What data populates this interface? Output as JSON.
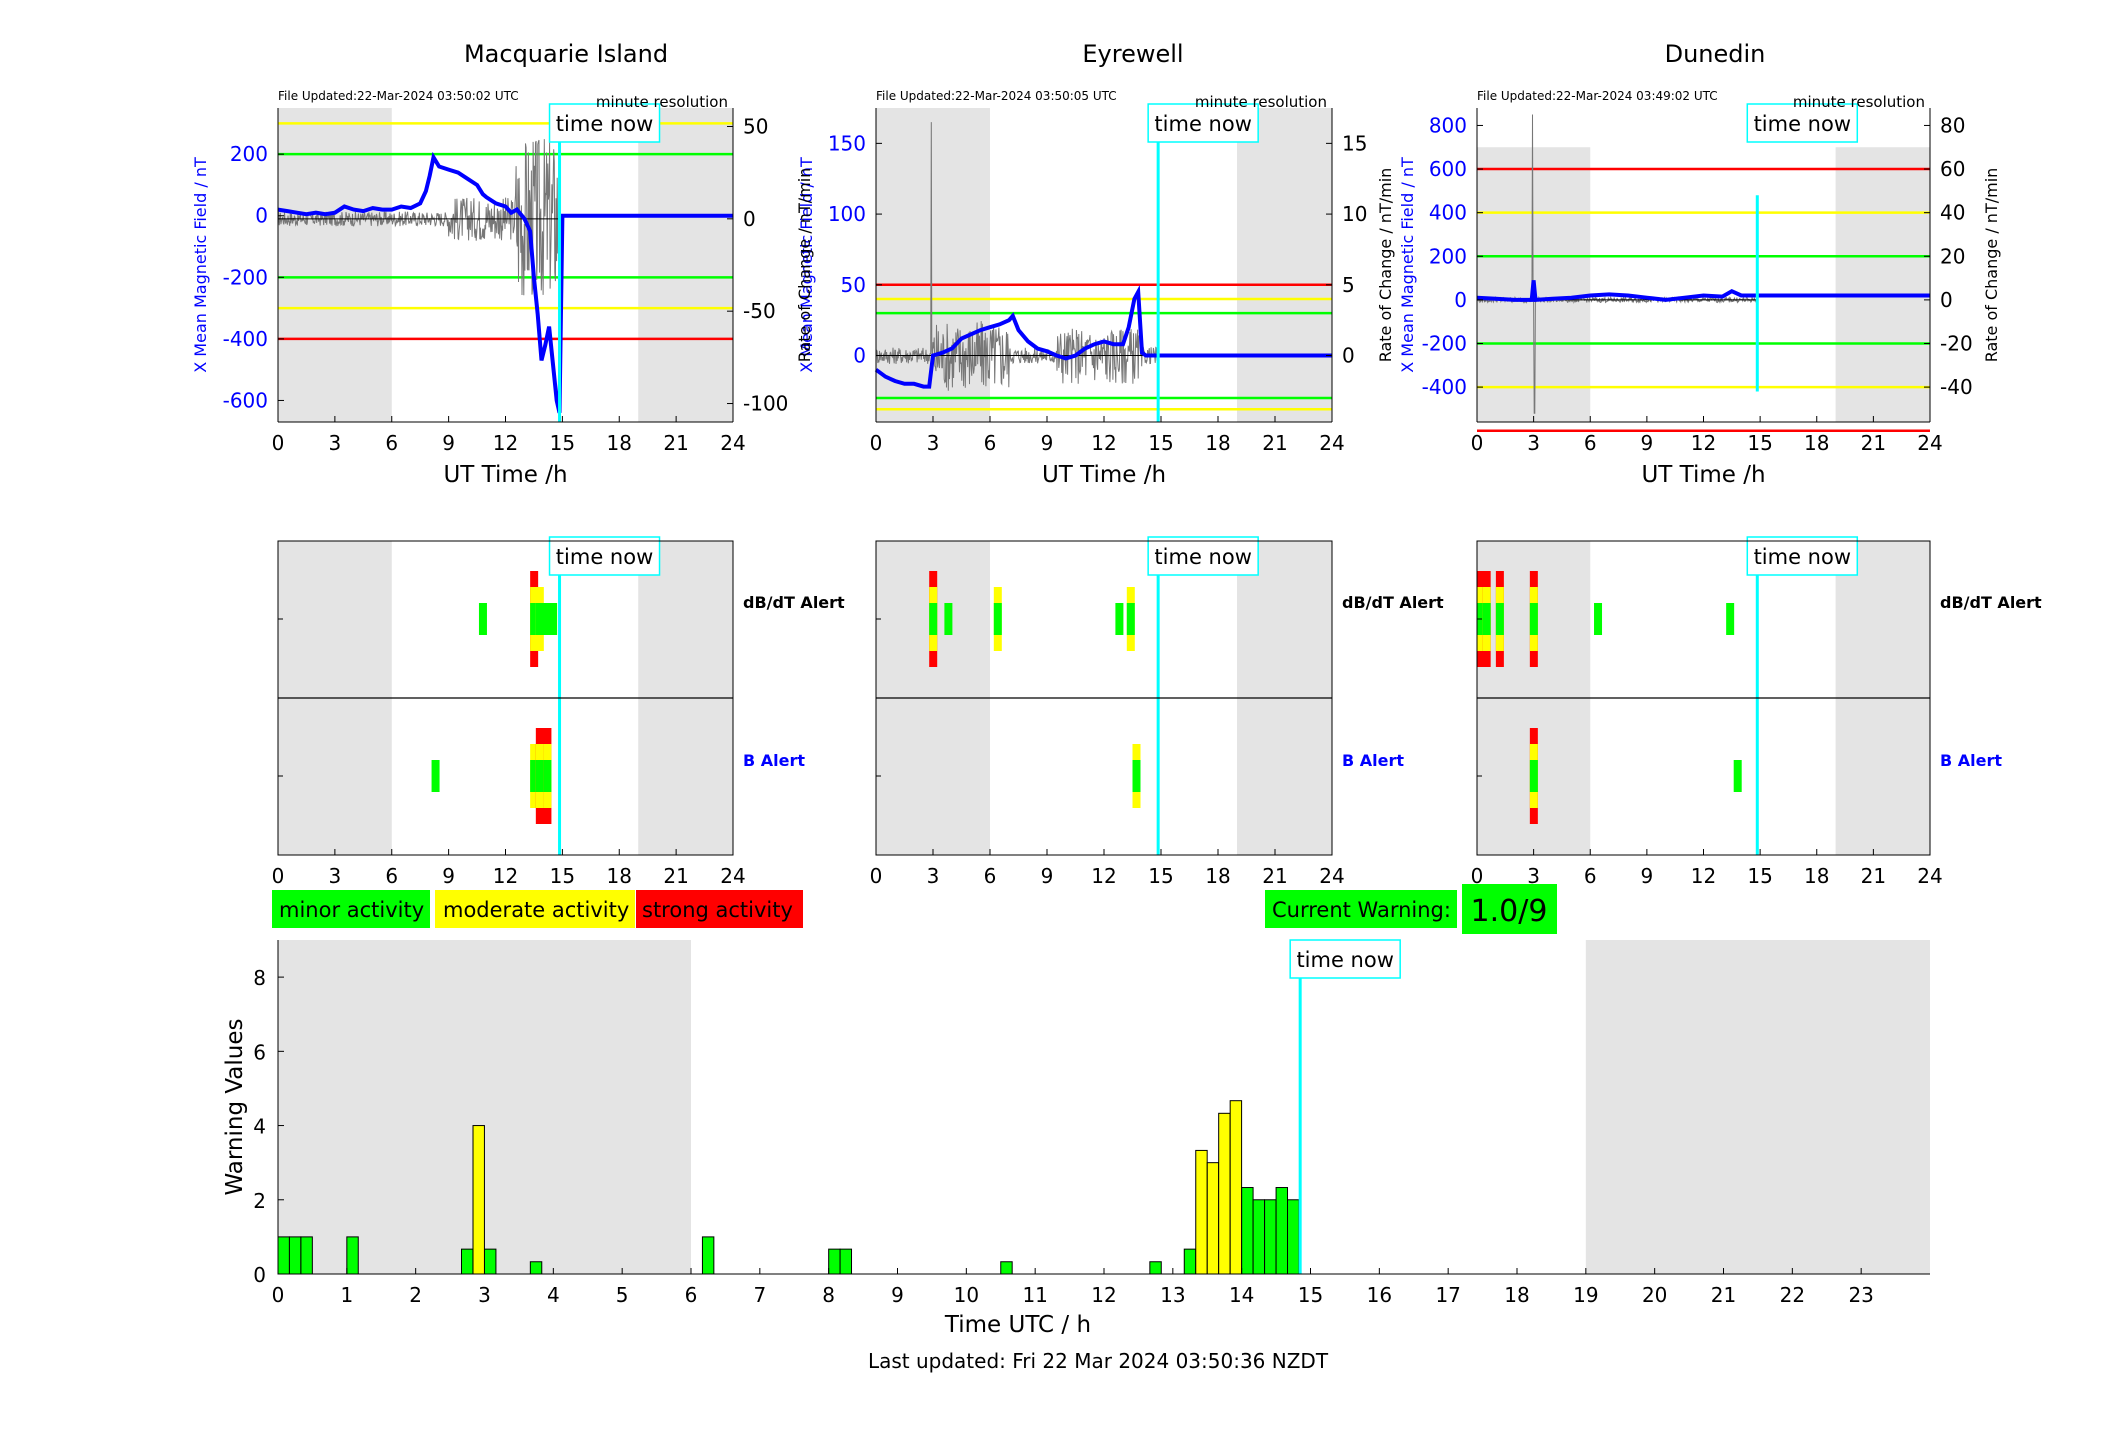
{
  "time_now_label": "time now",
  "last_updated": "Last updated: Fri 22 Mar 2024 03:50:36 NZDT",
  "current_warning": {
    "label": "Current Warning:",
    "value": "1.0/9",
    "color": "#00ff00"
  },
  "legend": [
    {
      "label": "minor activity",
      "color": "#00ff00"
    },
    {
      "label": "moderate activity",
      "color": "#ffff00"
    },
    {
      "label": "strong activity",
      "color": "#ff0000"
    }
  ],
  "colors": {
    "field_trace": "#0000ff",
    "rate_trace": "#000000",
    "time_now": "#00ffff",
    "night_shading": "#e4e4e4",
    "green_threshold": "#00ff00",
    "yellow_threshold": "#ffff00",
    "red_threshold": "#ff0000",
    "b_alert_label": "#0000ff"
  },
  "chart_data": [
    {
      "type": "line",
      "station": "Macquarie Island",
      "title": "Macquarie Island",
      "file_updated": "File Updated:22-Mar-2024 03:50:02 UTC",
      "resolution": "minute resolution",
      "xlabel": "UT Time /h",
      "ylabel_left": "X Mean Magnetic Field / nT",
      "ylabel_right": "",
      "xlim": [
        0,
        24
      ],
      "ylim_left": [
        -670,
        350
      ],
      "ylim_right": [
        -110,
        60
      ],
      "xticks": [
        0,
        3,
        6,
        9,
        12,
        15,
        18,
        21,
        24
      ],
      "yticks_left": [
        200,
        0,
        -200,
        -400,
        -600
      ],
      "yticks_right": [
        50,
        0,
        -50,
        -100
      ],
      "night": [
        [
          0,
          6
        ],
        [
          19,
          24
        ]
      ],
      "time_now": 14.85,
      "thresholds": [
        {
          "value": 300,
          "color": "#ffff00"
        },
        {
          "value": 200,
          "color": "#00ff00"
        },
        {
          "value": -200,
          "color": "#00ff00"
        },
        {
          "value": -300,
          "color": "#ffff00"
        },
        {
          "value": -400,
          "color": "#ff0000"
        }
      ],
      "series": [
        {
          "x": [
            0,
            0.5,
            1,
            1.5,
            2,
            2.5,
            3,
            3.5,
            4,
            4.5,
            5,
            5.5,
            6,
            6.5,
            7,
            7.5,
            7.8,
            8,
            8.2,
            8.5,
            9,
            9.5,
            10,
            10.5,
            10.8,
            11,
            11.5,
            12,
            12.3,
            12.6,
            13,
            13.3,
            13.5,
            13.7,
            13.9,
            14.1,
            14.3,
            14.5,
            14.7,
            14.85,
            15,
            24
          ],
          "y": [
            20,
            15,
            10,
            5,
            10,
            5,
            10,
            30,
            20,
            15,
            25,
            20,
            20,
            30,
            25,
            40,
            80,
            130,
            190,
            160,
            150,
            140,
            120,
            100,
            70,
            60,
            40,
            30,
            10,
            20,
            -10,
            -50,
            -200,
            -320,
            -470,
            -420,
            -360,
            -480,
            -600,
            -640,
            0,
            0
          ]
        }
      ]
    },
    {
      "type": "line",
      "station": "Eyrewell",
      "title": "Eyrewell",
      "file_updated": "File Updated:22-Mar-2024 03:50:05 UTC",
      "resolution": "minute resolution",
      "xlabel": "UT Time /h",
      "ylabel_left": "X Mean Magnetic Field / nT",
      "ylabel_right": "Rate of Change / nT/min",
      "xlim": [
        0,
        24
      ],
      "ylim_left": [
        -47,
        175
      ],
      "ylim_right": [
        -4.7,
        17.5
      ],
      "xticks": [
        0,
        3,
        6,
        9,
        12,
        15,
        18,
        21,
        24
      ],
      "yticks_left": [
        150,
        100,
        50,
        0
      ],
      "yticks_right": [
        15,
        10,
        5,
        0
      ],
      "night": [
        [
          0,
          6
        ],
        [
          19,
          24
        ]
      ],
      "time_now": 14.85,
      "thresholds": [
        {
          "value": 50,
          "color": "#ff0000"
        },
        {
          "value": 40,
          "color": "#ffff00"
        },
        {
          "value": 30,
          "color": "#00ff00"
        },
        {
          "value": -30,
          "color": "#00ff00"
        },
        {
          "value": -38,
          "color": "#ffff00"
        }
      ],
      "series": [
        {
          "x": [
            0,
            0.5,
            1,
            1.5,
            2,
            2.5,
            2.8,
            3,
            3.5,
            4,
            4.5,
            5,
            5.5,
            6,
            6.5,
            7,
            7.2,
            7.5,
            8,
            8.5,
            9,
            9.5,
            10,
            10.5,
            11,
            11.5,
            12,
            12.5,
            13,
            13.3,
            13.6,
            13.8,
            14,
            14.2,
            24
          ],
          "y": [
            -10,
            -15,
            -18,
            -20,
            -20,
            -22,
            -22,
            0,
            2,
            5,
            12,
            15,
            18,
            20,
            22,
            25,
            28,
            18,
            10,
            5,
            3,
            0,
            -2,
            0,
            5,
            8,
            10,
            8,
            8,
            20,
            40,
            45,
            2,
            0,
            0
          ]
        }
      ]
    },
    {
      "type": "line",
      "station": "Dunedin",
      "title": "Dunedin",
      "file_updated": "File Updated:22-Mar-2024 03:49:02 UTC",
      "resolution": "minute resolution",
      "xlabel": "UT Time /h",
      "ylabel_left": "X Mean Magnetic Field / nT",
      "ylabel_right": "Rate of Change / nT/min",
      "ylabel_far_left": "Rate of Change / nT/min",
      "xlim": [
        0,
        24
      ],
      "ylim_left": [
        -560,
        880
      ],
      "ylim_right": [
        -56,
        88
      ],
      "xticks": [
        0,
        3,
        6,
        9,
        12,
        15,
        18,
        21,
        24
      ],
      "yticks_left": [
        800,
        600,
        400,
        200,
        0,
        -200,
        -400
      ],
      "yticks_right": [
        80,
        60,
        40,
        20,
        0,
        -20,
        -40
      ],
      "night": [
        [
          0,
          6
        ],
        [
          19,
          24
        ]
      ],
      "night_top": 700,
      "time_now": 14.85,
      "thresholds": [
        {
          "value": 60,
          "color": "#ff0000"
        },
        {
          "value": 40,
          "color": "#ffff00"
        },
        {
          "value": 20,
          "color": "#00ff00"
        },
        {
          "value": -20,
          "color": "#00ff00"
        },
        {
          "value": -40,
          "color": "#ffff00"
        },
        {
          "value": -60,
          "color": "#ff0000"
        }
      ],
      "series": [
        {
          "x": [
            0,
            1,
            2,
            2.9,
            3,
            3.1,
            4,
            5,
            6,
            7,
            8,
            9,
            10,
            11,
            12,
            13,
            13.5,
            14,
            14.5,
            24
          ],
          "y": [
            10,
            5,
            0,
            0,
            90,
            0,
            5,
            10,
            20,
            25,
            20,
            10,
            0,
            10,
            20,
            15,
            40,
            20,
            20,
            20
          ]
        }
      ]
    },
    {
      "type": "heatmap",
      "station": "Macquarie Island",
      "label_dbdt": "dB/dT Alert",
      "label_b": "B Alert",
      "xlim": [
        0,
        24
      ],
      "xticks": [
        0,
        3,
        6,
        9,
        12,
        15,
        18,
        21,
        24
      ],
      "night": [
        [
          0,
          6
        ],
        [
          19,
          24
        ]
      ],
      "time_now": 14.85,
      "dbdt": [
        [
          10.6,
          1
        ],
        [
          13.3,
          3
        ],
        [
          13.6,
          2
        ],
        [
          13.9,
          1
        ],
        [
          14.3,
          1
        ]
      ],
      "b": [
        [
          8.1,
          1
        ],
        [
          13.3,
          2
        ],
        [
          13.6,
          3
        ],
        [
          14.0,
          3
        ]
      ]
    },
    {
      "type": "heatmap",
      "station": "Eyrewell",
      "label_dbdt": "dB/dT Alert",
      "label_b": "B Alert",
      "xlim": [
        0,
        24
      ],
      "xticks": [
        0,
        3,
        6,
        9,
        12,
        15,
        18,
        21,
        24
      ],
      "night": [
        [
          0,
          6
        ],
        [
          19,
          24
        ]
      ],
      "time_now": 14.85,
      "dbdt": [
        [
          2.8,
          3
        ],
        [
          3.6,
          1
        ],
        [
          6.2,
          2
        ],
        [
          12.6,
          1
        ],
        [
          13.2,
          2
        ]
      ],
      "b": [
        [
          13.5,
          2
        ]
      ]
    },
    {
      "type": "heatmap",
      "station": "Dunedin",
      "label_dbdt": "dB/dT Alert",
      "label_b": "B Alert",
      "xlim": [
        0,
        24
      ],
      "xticks": [
        0,
        3,
        6,
        9,
        12,
        15,
        18,
        21,
        24
      ],
      "night": [
        [
          0,
          6
        ],
        [
          19,
          24
        ]
      ],
      "time_now": 14.85,
      "dbdt": [
        [
          0.0,
          3
        ],
        [
          0.3,
          3
        ],
        [
          1.0,
          3
        ],
        [
          2.8,
          3
        ],
        [
          6.2,
          1
        ],
        [
          13.2,
          1
        ]
      ],
      "b": [
        [
          2.8,
          3
        ],
        [
          13.6,
          1
        ]
      ]
    },
    {
      "type": "bar",
      "title": "",
      "xlabel": "Time UTC / h",
      "ylabel": "Warning Values",
      "xlim": [
        0,
        24
      ],
      "ylim": [
        0,
        9
      ],
      "xticks": [
        0,
        1,
        2,
        3,
        4,
        5,
        6,
        7,
        8,
        9,
        10,
        11,
        12,
        13,
        14,
        15,
        16,
        17,
        18,
        19,
        20,
        21,
        22,
        23
      ],
      "yticks": [
        0,
        2,
        4,
        6,
        8
      ],
      "night": [
        [
          0,
          6
        ],
        [
          19,
          24
        ]
      ],
      "time_now": 14.85,
      "bar_width": 0.166,
      "bars": [
        {
          "x": 0.0,
          "value": 1.0,
          "level": "green"
        },
        {
          "x": 0.166,
          "value": 1.0,
          "level": "green"
        },
        {
          "x": 0.333,
          "value": 1.0,
          "level": "green"
        },
        {
          "x": 1.0,
          "value": 1.0,
          "level": "green"
        },
        {
          "x": 2.666,
          "value": 0.67,
          "level": "green"
        },
        {
          "x": 2.833,
          "value": 4.0,
          "level": "yellow"
        },
        {
          "x": 3.0,
          "value": 0.67,
          "level": "green"
        },
        {
          "x": 3.666,
          "value": 0.33,
          "level": "green"
        },
        {
          "x": 6.166,
          "value": 1.0,
          "level": "green"
        },
        {
          "x": 8.0,
          "value": 0.67,
          "level": "green"
        },
        {
          "x": 8.166,
          "value": 0.67,
          "level": "green"
        },
        {
          "x": 10.5,
          "value": 0.33,
          "level": "green"
        },
        {
          "x": 12.666,
          "value": 0.33,
          "level": "green"
        },
        {
          "x": 13.166,
          "value": 0.67,
          "level": "green"
        },
        {
          "x": 13.333,
          "value": 3.33,
          "level": "yellow"
        },
        {
          "x": 13.5,
          "value": 3.0,
          "level": "yellow"
        },
        {
          "x": 13.666,
          "value": 4.33,
          "level": "yellow"
        },
        {
          "x": 13.833,
          "value": 4.67,
          "level": "yellow"
        },
        {
          "x": 14.0,
          "value": 2.33,
          "level": "green"
        },
        {
          "x": 14.166,
          "value": 2.0,
          "level": "green"
        },
        {
          "x": 14.333,
          "value": 2.0,
          "level": "green"
        },
        {
          "x": 14.5,
          "value": 2.33,
          "level": "green"
        },
        {
          "x": 14.666,
          "value": 2.0,
          "level": "green"
        }
      ]
    }
  ]
}
